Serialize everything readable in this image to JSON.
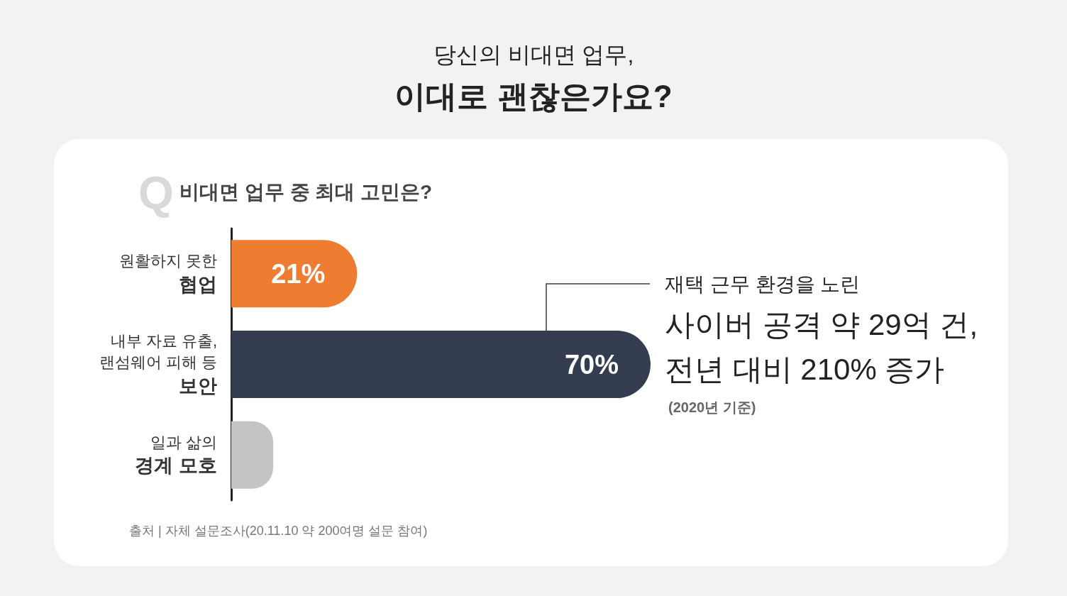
{
  "chart_data": {
    "type": "bar",
    "orientation": "horizontal",
    "subtitle": "당신의 비대면 업무,",
    "title": "이대로 괜찮은가요?",
    "categories": [
      "원활하지 못한\n협업",
      "내부 자료 유출,\n랜섬웨어 피해 등\n보안",
      "일과 삶의\n경계 모호"
    ],
    "values": [
      21,
      70,
      7
    ],
    "colors": [
      "#ee7d32",
      "#333d4f",
      "#c4c4c4"
    ],
    "value_labels": [
      "21%",
      "70%",
      null
    ],
    "annotations": [
      "Q",
      "비대면 업무 중 최대 고민은?",
      "재택 근무 환경을 노린",
      "사이버 공격 약 29억 건,",
      "전년 대비 210% 증가",
      "(2020년 기준)",
      "출처 | 자체 설문조사(20.11.10 약 200여명 설문 참여)"
    ]
  }
}
